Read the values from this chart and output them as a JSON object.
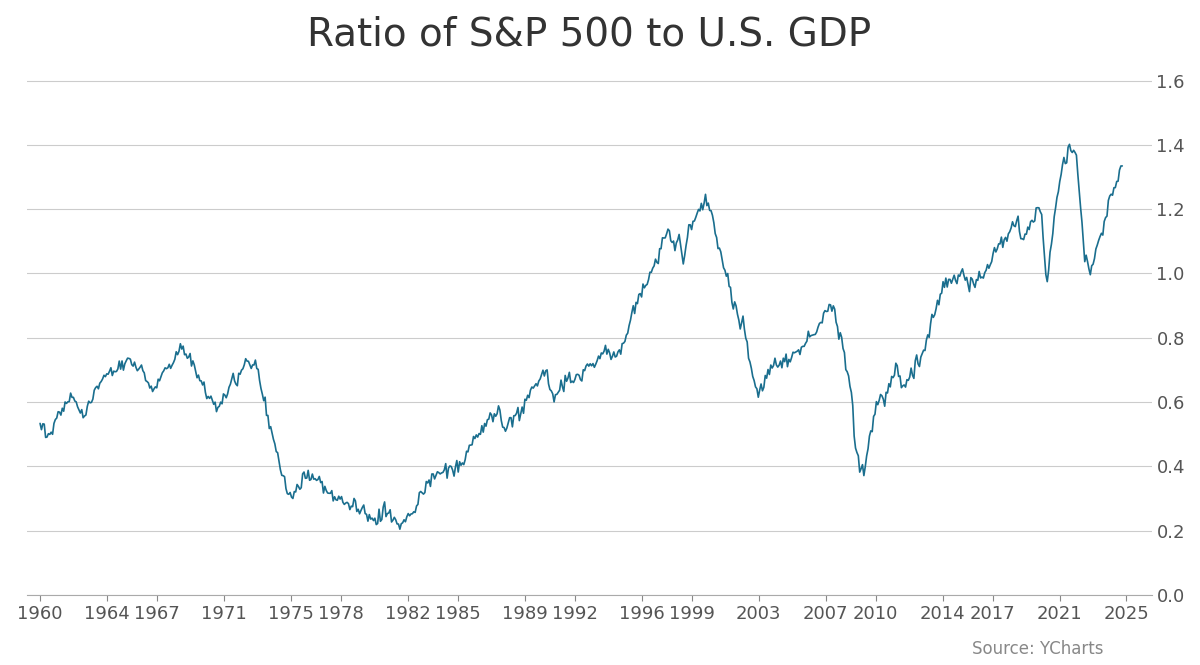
{
  "title": "Ratio of S&P 500 to U.S. GDP",
  "line_color": "#1a6e8e",
  "background_color": "#ffffff",
  "grid_color": "#cccccc",
  "title_fontsize": 28,
  "tick_label_fontsize": 13,
  "source_text": "Source: YCharts",
  "source_fontsize": 12,
  "ylim": [
    0.0,
    1.65
  ],
  "yticks": [
    0.0,
    0.2,
    0.4,
    0.6,
    0.8,
    1.0,
    1.2,
    1.4,
    1.6
  ],
  "xtick_years": [
    1960,
    1964,
    1967,
    1971,
    1975,
    1978,
    1982,
    1985,
    1989,
    1992,
    1996,
    1999,
    2003,
    2007,
    2010,
    2014,
    2017,
    2021,
    2025
  ],
  "line_width": 1.2
}
